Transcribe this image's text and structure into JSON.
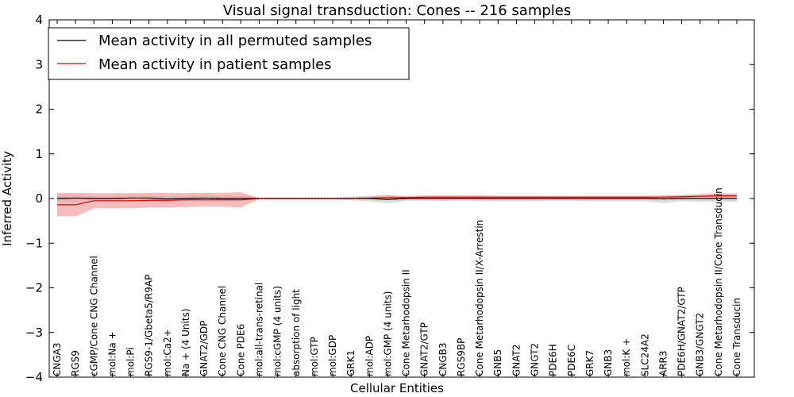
{
  "chart_data": {
    "type": "line",
    "title": "Visual signal transduction: Cones -- 216 samples",
    "xlabel": "Cellular Entities",
    "ylabel": "Inferred Activity",
    "ylim": [
      -4,
      4
    ],
    "yticks": [
      -4,
      -3,
      -2,
      -1,
      0,
      1,
      2,
      3,
      4
    ],
    "ytick_labels": [
      "−4",
      "−3",
      "−2",
      "−1",
      "0",
      "1",
      "2",
      "3",
      "4"
    ],
    "legend_position": "top-left",
    "categories": [
      "CNGA3",
      "RGS9",
      "cGMP/Cone CNG Channel",
      "mol:Na +",
      "mol:Pi",
      "RGS9-1/Gbeta5/R9AP",
      "mol:Ca2+",
      "Na + (4 Units)",
      "GNAT2/GDP",
      "Cone CNG Channel",
      "Cone PDE6",
      "mol:all-trans-retinal",
      "mol:cGMP (4 units)",
      "absorption of light",
      "mol:GTP",
      "mol:GDP",
      "GRK1",
      "mol:ADP",
      "mol:GMP (4 units)",
      "Cone Metarhodopsin II",
      "GNAT2/GTP",
      "CNGB3",
      "RGS9BP",
      "Cone Metarhodopsin II/X-Arrestin",
      "GNB5",
      "GNAT2",
      "GNGT2",
      "PDE6H",
      "PDE6C",
      "GRK7",
      "GNB3",
      "mol:K +",
      "SLC24A2",
      "ARR3",
      "PDE6H/GNAT2/GTP",
      "GNB3/GNGT2",
      "Cone Metarhodopsin II/Cone Transducin",
      "Cone Transducin"
    ],
    "series": [
      {
        "name": "Mean activity in all permuted samples",
        "color": "#000000",
        "band_color": "#bdbdbd",
        "values": [
          0.0,
          0.01,
          0.0,
          0.0,
          0.01,
          0.01,
          -0.01,
          0.0,
          0.01,
          0.0,
          0.0,
          0.0,
          0.0,
          0.0,
          0.0,
          0.0,
          0.0,
          0.0,
          -0.02,
          0.0,
          0.0,
          0.0,
          0.0,
          0.0,
          0.0,
          0.0,
          0.0,
          0.0,
          0.0,
          0.0,
          0.0,
          0.0,
          0.0,
          -0.01,
          0.0,
          0.0,
          0.0,
          0.0
        ],
        "lower": [
          -0.08,
          -0.08,
          -0.07,
          -0.07,
          -0.07,
          -0.07,
          -0.08,
          -0.07,
          -0.07,
          -0.07,
          -0.07,
          -0.02,
          -0.02,
          -0.02,
          -0.02,
          -0.02,
          -0.04,
          -0.06,
          -0.11,
          -0.05,
          -0.05,
          -0.06,
          -0.05,
          -0.06,
          -0.06,
          -0.06,
          -0.06,
          -0.05,
          -0.05,
          -0.06,
          -0.06,
          -0.06,
          -0.06,
          -0.1,
          -0.06,
          -0.07,
          -0.07,
          -0.07
        ],
        "upper": [
          0.08,
          0.08,
          0.07,
          0.07,
          0.08,
          0.08,
          0.06,
          0.07,
          0.08,
          0.07,
          0.07,
          0.02,
          0.02,
          0.02,
          0.02,
          0.02,
          0.04,
          0.06,
          0.07,
          0.05,
          0.05,
          0.06,
          0.05,
          0.06,
          0.06,
          0.06,
          0.06,
          0.05,
          0.05,
          0.06,
          0.06,
          0.06,
          0.06,
          0.06,
          0.06,
          0.07,
          0.07,
          0.07
        ]
      },
      {
        "name": "Mean activity in patient samples",
        "color": "#e00000",
        "band_color": "#f4a0a0",
        "values": [
          -0.14,
          -0.14,
          -0.05,
          -0.05,
          -0.05,
          -0.04,
          -0.04,
          -0.03,
          -0.03,
          -0.03,
          -0.03,
          0.0,
          0.0,
          0.0,
          0.0,
          0.0,
          0.0,
          0.01,
          0.02,
          0.02,
          0.03,
          0.03,
          0.03,
          0.03,
          0.03,
          0.03,
          0.03,
          0.03,
          0.03,
          0.03,
          0.03,
          0.03,
          0.03,
          0.03,
          0.04,
          0.05,
          0.06,
          0.06
        ],
        "lower": [
          -0.4,
          -0.4,
          -0.22,
          -0.22,
          -0.22,
          -0.2,
          -0.2,
          -0.19,
          -0.18,
          -0.18,
          -0.2,
          -0.01,
          -0.01,
          -0.01,
          -0.01,
          -0.01,
          -0.01,
          -0.01,
          0.0,
          0.0,
          0.0,
          0.0,
          0.0,
          0.0,
          0.0,
          0.0,
          0.0,
          0.0,
          0.0,
          0.0,
          0.0,
          0.0,
          0.0,
          0.0,
          0.01,
          0.02,
          0.02,
          0.02
        ],
        "upper": [
          0.13,
          0.13,
          0.12,
          0.12,
          0.12,
          0.13,
          0.13,
          0.12,
          0.13,
          0.13,
          0.14,
          0.01,
          0.01,
          0.01,
          0.01,
          0.01,
          0.02,
          0.05,
          0.08,
          0.05,
          0.07,
          0.07,
          0.07,
          0.07,
          0.06,
          0.06,
          0.06,
          0.06,
          0.06,
          0.06,
          0.06,
          0.06,
          0.06,
          0.07,
          0.08,
          0.1,
          0.12,
          0.12
        ]
      }
    ]
  }
}
